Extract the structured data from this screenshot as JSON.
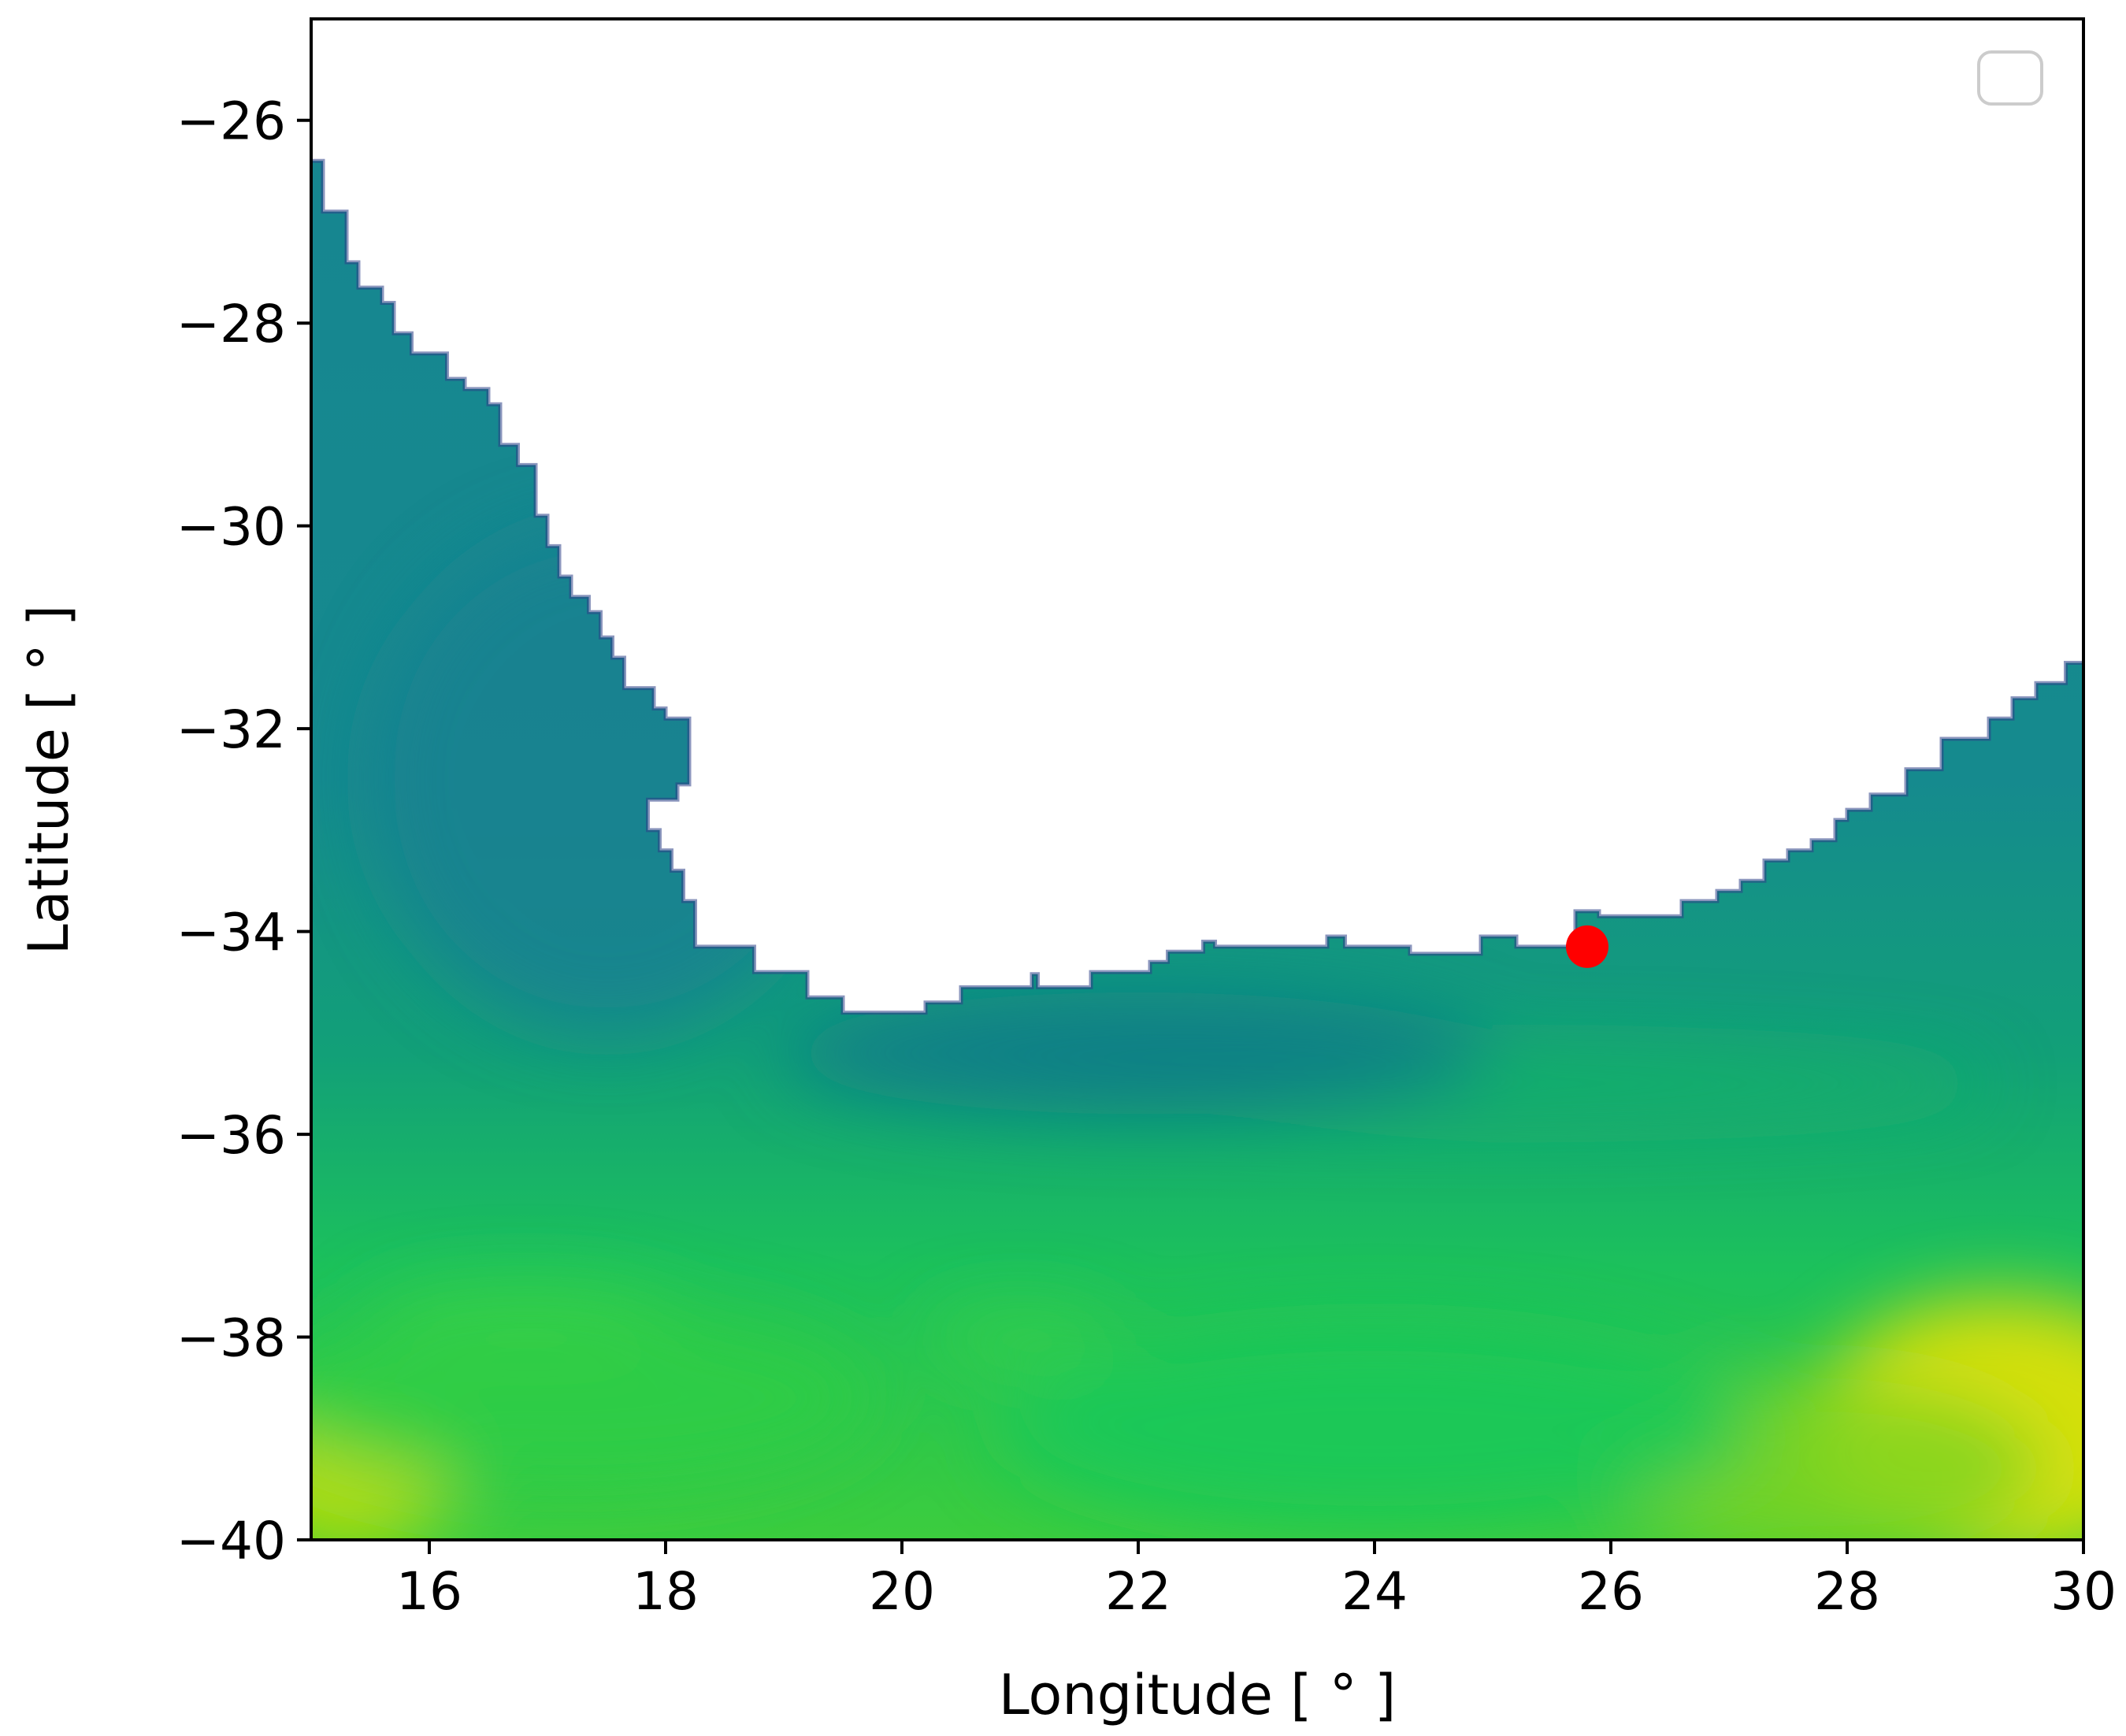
{
  "map": {
    "xlabel": "Longitude [ ° ]",
    "ylabel": "Latitude [ ° ]",
    "xlim": [
      15,
      30
    ],
    "ylim": [
      -40,
      -25
    ],
    "x_ticks": [
      16,
      18,
      20,
      22,
      24,
      26,
      28,
      30
    ],
    "y_ticks": [
      -26,
      -28,
      -30,
      -32,
      -34,
      -36,
      -38,
      -40
    ],
    "colormap": "viridis-like (dark blue-teal to green to yellow)",
    "land_color": "#ffffff",
    "legend": "empty legend box, top-right",
    "marker": {
      "lon": 25.8,
      "lat": -34.15,
      "color": "#ff0000",
      "shape": "circle"
    },
    "coastline": [
      [
        15.0,
        -26.4
      ],
      [
        15.1,
        -26.4
      ],
      [
        15.1,
        -26.9
      ],
      [
        15.3,
        -26.9
      ],
      [
        15.3,
        -27.4
      ],
      [
        15.4,
        -27.4
      ],
      [
        15.4,
        -27.65
      ],
      [
        15.6,
        -27.65
      ],
      [
        15.6,
        -27.8
      ],
      [
        15.7,
        -27.8
      ],
      [
        15.7,
        -28.1
      ],
      [
        15.85,
        -28.1
      ],
      [
        15.85,
        -28.3
      ],
      [
        16.15,
        -28.3
      ],
      [
        16.15,
        -28.55
      ],
      [
        16.3,
        -28.55
      ],
      [
        16.3,
        -28.65
      ],
      [
        16.5,
        -28.65
      ],
      [
        16.5,
        -28.8
      ],
      [
        16.6,
        -28.8
      ],
      [
        16.6,
        -29.2
      ],
      [
        16.75,
        -29.2
      ],
      [
        16.75,
        -29.4
      ],
      [
        16.9,
        -29.4
      ],
      [
        16.9,
        -29.9
      ],
      [
        17.0,
        -29.9
      ],
      [
        17.0,
        -30.2
      ],
      [
        17.1,
        -30.2
      ],
      [
        17.1,
        -30.5
      ],
      [
        17.2,
        -30.5
      ],
      [
        17.2,
        -30.7
      ],
      [
        17.35,
        -30.7
      ],
      [
        17.35,
        -30.85
      ],
      [
        17.45,
        -30.85
      ],
      [
        17.45,
        -31.1
      ],
      [
        17.55,
        -31.1
      ],
      [
        17.55,
        -31.3
      ],
      [
        17.65,
        -31.3
      ],
      [
        17.65,
        -31.6
      ],
      [
        17.9,
        -31.6
      ],
      [
        17.9,
        -31.8
      ],
      [
        18.0,
        -31.8
      ],
      [
        18.0,
        -31.9
      ],
      [
        18.2,
        -31.9
      ],
      [
        18.2,
        -32.55
      ],
      [
        18.1,
        -32.55
      ],
      [
        18.1,
        -32.7
      ],
      [
        17.85,
        -32.7
      ],
      [
        17.85,
        -33.0
      ],
      [
        17.95,
        -33.0
      ],
      [
        17.95,
        -33.2
      ],
      [
        18.05,
        -33.2
      ],
      [
        18.05,
        -33.4
      ],
      [
        18.15,
        -33.4
      ],
      [
        18.15,
        -33.7
      ],
      [
        18.25,
        -33.7
      ],
      [
        18.25,
        -34.15
      ],
      [
        18.75,
        -34.15
      ],
      [
        18.75,
        -34.4
      ],
      [
        19.2,
        -34.4
      ],
      [
        19.2,
        -34.65
      ],
      [
        19.5,
        -34.65
      ],
      [
        19.5,
        -34.8
      ],
      [
        20.2,
        -34.8
      ],
      [
        20.2,
        -34.7
      ],
      [
        20.5,
        -34.7
      ],
      [
        20.5,
        -34.55
      ],
      [
        21.1,
        -34.55
      ],
      [
        21.1,
        -34.42
      ],
      [
        21.15,
        -34.42
      ],
      [
        21.15,
        -34.55
      ],
      [
        21.6,
        -34.55
      ],
      [
        21.6,
        -34.4
      ],
      [
        22.1,
        -34.4
      ],
      [
        22.1,
        -34.3
      ],
      [
        22.25,
        -34.3
      ],
      [
        22.25,
        -34.2
      ],
      [
        22.55,
        -34.2
      ],
      [
        22.55,
        -34.1
      ],
      [
        22.65,
        -34.1
      ],
      [
        22.65,
        -34.15
      ],
      [
        23.6,
        -34.15
      ],
      [
        23.6,
        -34.05
      ],
      [
        23.75,
        -34.05
      ],
      [
        23.75,
        -34.15
      ],
      [
        24.3,
        -34.15
      ],
      [
        24.3,
        -34.22
      ],
      [
        24.9,
        -34.22
      ],
      [
        24.9,
        -34.05
      ],
      [
        25.2,
        -34.05
      ],
      [
        25.2,
        -34.15
      ],
      [
        25.7,
        -34.15
      ],
      [
        25.7,
        -33.8
      ],
      [
        25.9,
        -33.8
      ],
      [
        25.9,
        -33.85
      ],
      [
        26.6,
        -33.85
      ],
      [
        26.6,
        -33.7
      ],
      [
        26.9,
        -33.7
      ],
      [
        26.9,
        -33.6
      ],
      [
        27.1,
        -33.6
      ],
      [
        27.1,
        -33.5
      ],
      [
        27.3,
        -33.5
      ],
      [
        27.3,
        -33.3
      ],
      [
        27.5,
        -33.3
      ],
      [
        27.5,
        -33.2
      ],
      [
        27.7,
        -33.2
      ],
      [
        27.7,
        -33.1
      ],
      [
        27.9,
        -33.1
      ],
      [
        27.9,
        -32.9
      ],
      [
        28.0,
        -32.9
      ],
      [
        28.0,
        -32.8
      ],
      [
        28.2,
        -32.8
      ],
      [
        28.2,
        -32.65
      ],
      [
        28.5,
        -32.65
      ],
      [
        28.5,
        -32.4
      ],
      [
        28.8,
        -32.4
      ],
      [
        28.8,
        -32.1
      ],
      [
        29.2,
        -32.1
      ],
      [
        29.2,
        -31.9
      ],
      [
        29.4,
        -31.9
      ],
      [
        29.4,
        -31.7
      ],
      [
        29.6,
        -31.7
      ],
      [
        29.6,
        -31.55
      ],
      [
        29.85,
        -31.55
      ],
      [
        29.85,
        -31.35
      ],
      [
        30.0,
        -31.35
      ]
    ],
    "field_features": [
      {
        "lon": 15.3,
        "lat": -39.4,
        "rx": 0.9,
        "ry": 0.7,
        "color": "#c8e000"
      },
      {
        "lon": 29.3,
        "lat": -38.9,
        "rx": 1.6,
        "ry": 1.3,
        "color": "#f3e400"
      },
      {
        "lon": 27.8,
        "lat": -39.3,
        "rx": 1.9,
        "ry": 0.9,
        "color": "#7fd41e"
      },
      {
        "lon": 17.2,
        "lat": -38.6,
        "rx": 2.6,
        "ry": 0.9,
        "color": "#2fcc44"
      },
      {
        "lon": 24.0,
        "lat": -38.9,
        "rx": 3.2,
        "ry": 1.0,
        "color": "#14c85a"
      },
      {
        "lon": 21.0,
        "lat": -38.0,
        "rx": 0.8,
        "ry": 0.25,
        "color": "#3ad148"
      },
      {
        "lon": 16.8,
        "lat": -37.8,
        "rx": 1.3,
        "ry": 0.3,
        "color": "#3ad148"
      },
      {
        "lon": 25.0,
        "lat": -35.5,
        "rx": 4.2,
        "ry": 0.35,
        "color": "#1ab06a"
      },
      {
        "lon": 22.0,
        "lat": -35.2,
        "rx": 3.0,
        "ry": 0.6,
        "color": "#0f7a8a"
      },
      {
        "lon": 17.5,
        "lat": -32.5,
        "rx": 2.0,
        "ry": 2.5,
        "color": "#1a8190"
      }
    ]
  }
}
